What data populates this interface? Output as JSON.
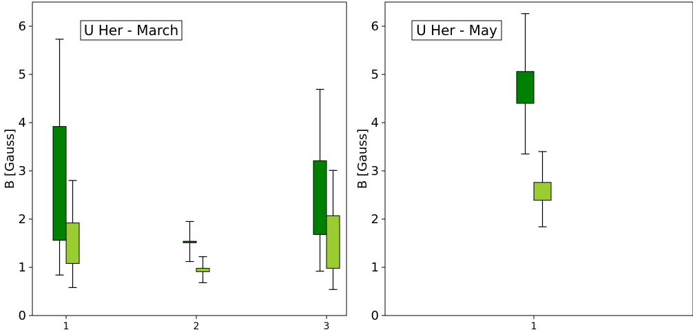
{
  "colors": {
    "dark_green": "#008000",
    "light_green": "#9acd32"
  },
  "chart_data": [
    {
      "type": "box",
      "title": "U Her - March",
      "ylabel": "B [Gauss]",
      "xlabel": "",
      "ylim": [
        0,
        6.5
      ],
      "y_ticks": [
        "0",
        "1",
        "2",
        "3",
        "4",
        "5",
        "6"
      ],
      "categories": [
        "1",
        "2",
        "3"
      ],
      "grid": false,
      "series": [
        {
          "color": "#008000",
          "boxes": [
            {
              "category": "1",
              "whisker_low": 0.84,
              "q1": 1.56,
              "q3": 3.92,
              "whisker_high": 5.73
            },
            {
              "category": "2",
              "whisker_low": 1.12,
              "q1": 1.51,
              "q3": 1.54,
              "whisker_high": 1.95
            },
            {
              "category": "3",
              "whisker_low": 0.92,
              "q1": 1.68,
              "q3": 3.21,
              "whisker_high": 4.69
            }
          ]
        },
        {
          "color": "#9acd32",
          "boxes": [
            {
              "category": "1",
              "whisker_low": 0.58,
              "q1": 1.08,
              "q3": 1.92,
              "whisker_high": 2.8
            },
            {
              "category": "2",
              "whisker_low": 0.68,
              "q1": 0.91,
              "q3": 0.98,
              "whisker_high": 1.22
            },
            {
              "category": "3",
              "whisker_low": 0.54,
              "q1": 0.98,
              "q3": 2.07,
              "whisker_high": 3.01
            }
          ]
        }
      ]
    },
    {
      "type": "box",
      "title": "U Her - May",
      "ylabel": "B [Gauss]",
      "xlabel": "",
      "ylim": [
        0,
        6.5
      ],
      "y_ticks": [
        "0",
        "1",
        "2",
        "3",
        "4",
        "5",
        "6"
      ],
      "categories": [
        "1"
      ],
      "grid": false,
      "series": [
        {
          "color": "#008000",
          "boxes": [
            {
              "category": "1",
              "whisker_low": 3.35,
              "q1": 4.4,
              "q3": 5.06,
              "whisker_high": 6.26
            }
          ]
        },
        {
          "color": "#9acd32",
          "boxes": [
            {
              "category": "1",
              "whisker_low": 1.84,
              "q1": 2.39,
              "q3": 2.76,
              "whisker_high": 3.4
            }
          ]
        }
      ]
    }
  ]
}
